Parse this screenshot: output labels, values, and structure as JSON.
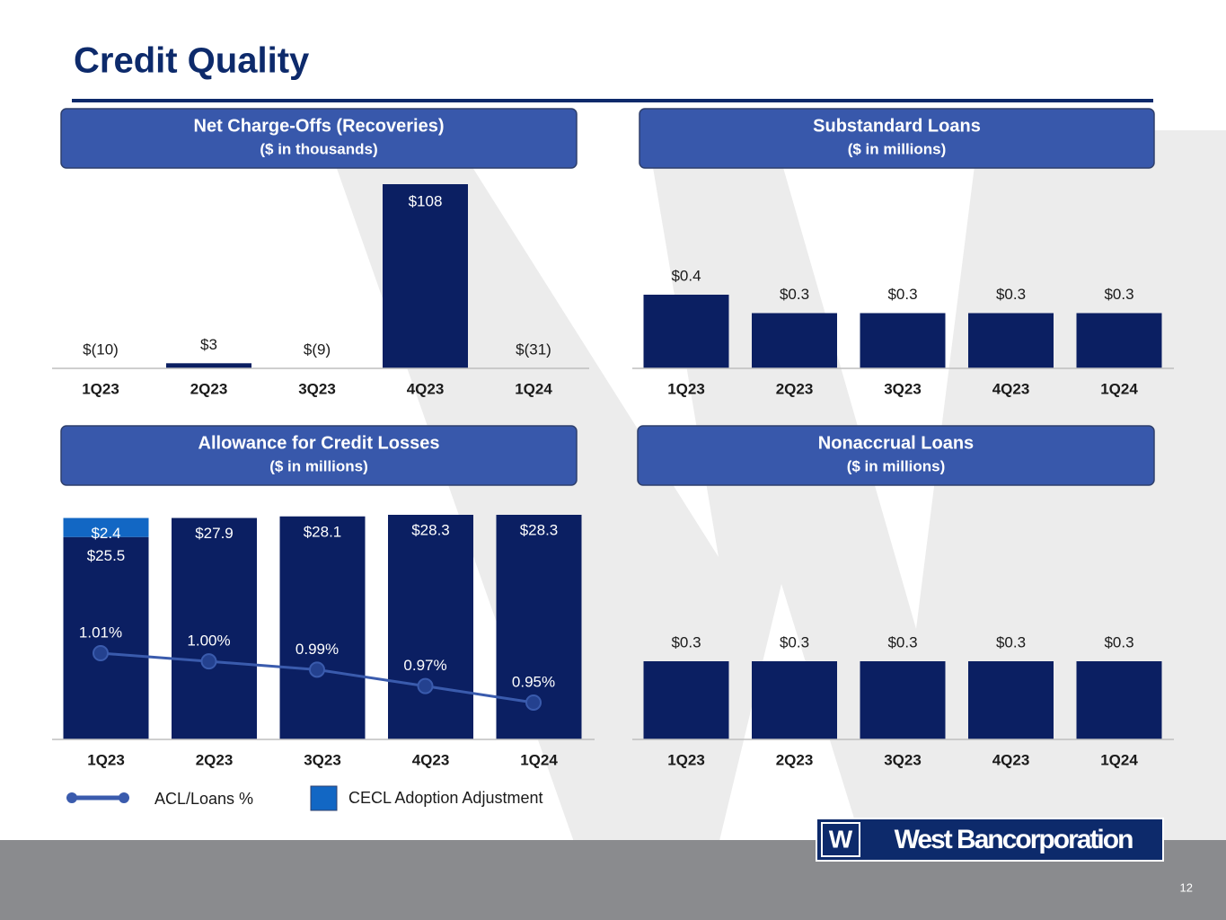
{
  "slide": {
    "title": "Credit Quality",
    "logo": "West Bancorporation",
    "page": "12"
  },
  "chart_data": [
    {
      "type": "bar",
      "title": "Net Charge-Offs (Recoveries)",
      "subtitle": "($ in thousands)",
      "categories": [
        "1Q23",
        "2Q23",
        "3Q23",
        "4Q23",
        "1Q24"
      ],
      "values": [
        -10,
        3,
        -9,
        108,
        -31
      ],
      "value_labels": [
        "$(10)",
        "$3",
        "$(9)",
        "$108",
        "$(31)"
      ],
      "color": "#0b1f62"
    },
    {
      "type": "bar",
      "title": "Substandard Loans",
      "subtitle": "($ in millions)",
      "categories": [
        "1Q23",
        "2Q23",
        "3Q23",
        "4Q23",
        "1Q24"
      ],
      "values": [
        0.4,
        0.3,
        0.3,
        0.3,
        0.3
      ],
      "value_labels": [
        "$0.4",
        "$0.3",
        "$0.3",
        "$0.3",
        "$0.3"
      ],
      "color": "#0b1f62"
    },
    {
      "type": "stacked_bar_line",
      "title": "Allowance for Credit Losses",
      "subtitle": "($ in millions)",
      "categories": [
        "1Q23",
        "2Q23",
        "3Q23",
        "4Q23",
        "1Q24"
      ],
      "series": [
        {
          "color": "#0b1f62",
          "values": [
            25.5,
            27.9,
            28.1,
            28.3,
            28.3
          ],
          "value_labels": [
            "$25.5",
            "$27.9",
            "$28.1",
            "$28.3",
            "$28.3"
          ]
        },
        {
          "name": "CECL Adoption Adjustment",
          "color": "#1267c4",
          "values": [
            2.4,
            null,
            null,
            null,
            null
          ],
          "value_labels": [
            "$2.4",
            null,
            null,
            null,
            null
          ]
        },
        {
          "name": "ACL/Loans %",
          "type": "line",
          "axis": "y2",
          "color": "#3a5bad",
          "values": [
            1.01,
            1.0,
            0.99,
            0.97,
            0.95
          ],
          "value_labels": [
            "1.01%",
            "1.00%",
            "0.99%",
            "0.97%",
            "0.95%"
          ]
        }
      ]
    },
    {
      "type": "bar",
      "title": "Nonaccrual Loans",
      "subtitle": "($ in millions)",
      "categories": [
        "1Q23",
        "2Q23",
        "3Q23",
        "4Q23",
        "1Q24"
      ],
      "values": [
        0.3,
        0.3,
        0.3,
        0.3,
        0.3
      ],
      "value_labels": [
        "$0.3",
        "$0.3",
        "$0.3",
        "$0.3",
        "$0.3"
      ],
      "color": "#0b1f62"
    }
  ]
}
